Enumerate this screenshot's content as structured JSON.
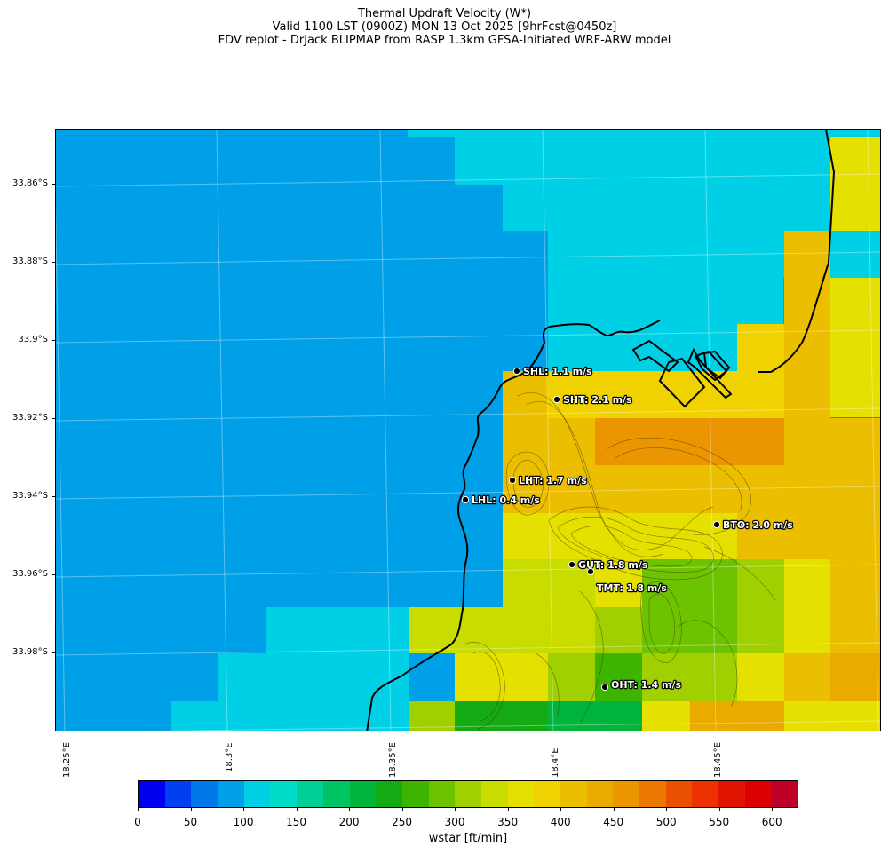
{
  "titles": {
    "line1": "Thermal Updraft Velocity (W*)",
    "line2": "Valid 1100 LST (0900Z) MON 13 Oct 2025 [9hrFcst@0450z]",
    "line3": "FDV replot - DrJack BLIPMAP from RASP 1.3km GFSA-Initiated WRF-ARW model"
  },
  "axes": {
    "lat_labels": [
      "33.86°S",
      "33.88°S",
      "33.9°S",
      "33.92°S",
      "33.94°S",
      "33.96°S",
      "33.98°S"
    ],
    "lon_labels": [
      "18.25°E",
      "18.3°E",
      "18.35°E",
      "18.4°E",
      "18.45°E"
    ]
  },
  "sites": [
    {
      "name": "SHL",
      "value": "1.1 m/s",
      "label": "SHL: 1.1 m/s"
    },
    {
      "name": "SHT",
      "value": "2.1 m/s",
      "label": "SHT: 2.1 m/s"
    },
    {
      "name": "LHT",
      "value": "1.7 m/s",
      "label": "LHT: 1.7 m/s"
    },
    {
      "name": "LHL",
      "value": "0.4 m/s",
      "label": "LHL: 0.4 m/s"
    },
    {
      "name": "BTO",
      "value": "2.0 m/s",
      "label": "BTO: 2.0 m/s"
    },
    {
      "name": "GUT",
      "value": "1.8 m/s",
      "label": "GUT: 1.8 m/s"
    },
    {
      "name": "TMT",
      "value": "1.8 m/s",
      "label": "TMT: 1.8 m/s"
    },
    {
      "name": "OHT",
      "value": "1.4 m/s",
      "label": "OHT: 1.4 m/s"
    }
  ],
  "colorbar": {
    "title": "wstar [ft/min]",
    "ticks": [
      "0",
      "50",
      "100",
      "150",
      "200",
      "250",
      "300",
      "350",
      "400",
      "450",
      "500",
      "550",
      "600"
    ],
    "colors": [
      "#0000f0",
      "#0040f0",
      "#0078e8",
      "#00a0e8",
      "#00d0e6",
      "#00dcc8",
      "#00d096",
      "#00c364",
      "#00b43c",
      "#14aa14",
      "#3cb400",
      "#6ec300",
      "#a0d000",
      "#c8dc00",
      "#e6e000",
      "#f0d200",
      "#ebbe00",
      "#eaaa00",
      "#eb9600",
      "#eb7800",
      "#eb5000",
      "#eb3200",
      "#e01400",
      "#dc0000",
      "#be0028"
    ]
  }
}
